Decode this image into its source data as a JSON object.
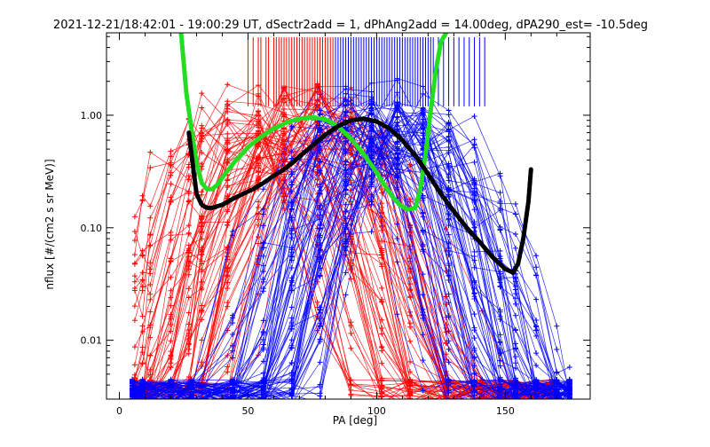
{
  "chart_data": {
    "type": "line",
    "title": "2021-12-21/18:42:01 - 19:00:29 UT, dSectr2add = 1, dPhAng2add = 14.00deg, dPA290_est= -10.5deg",
    "xlabel": "PA [deg]",
    "ylabel": "nflux [#/(cm2 s sr MeV)]",
    "xlim": [
      -5,
      183
    ],
    "ylim": [
      0.003,
      5.4
    ],
    "y_scale": "log",
    "grid": false,
    "legend": "none",
    "x_ticks": [
      0,
      50,
      100,
      150
    ],
    "x_tick_labels": [
      "0",
      "50",
      "100",
      "150"
    ],
    "y_ticks": [
      0.01,
      0.1,
      1.0
    ],
    "y_tick_labels": [
      "0.01",
      "0.10",
      "1.00"
    ],
    "colors": {
      "red": "#ff0000",
      "blue": "#0000ff",
      "green": "#22dd22",
      "black": "#000000",
      "axis": "#000000"
    },
    "series": [
      {
        "color": "#22dd22",
        "style": "thick-dotted",
        "x": [
          24,
          26,
          28,
          30,
          32,
          34,
          36,
          38,
          40,
          42,
          45,
          48,
          50,
          55,
          60,
          65,
          70,
          75,
          80,
          85,
          90,
          95,
          100,
          103,
          106,
          109,
          112,
          115,
          117,
          119,
          121,
          123,
          125,
          127
        ],
        "y": [
          5.3,
          1.6,
          0.75,
          0.38,
          0.25,
          0.22,
          0.22,
          0.24,
          0.28,
          0.32,
          0.39,
          0.46,
          0.52,
          0.64,
          0.76,
          0.86,
          0.93,
          0.96,
          0.92,
          0.8,
          0.62,
          0.45,
          0.31,
          0.24,
          0.19,
          0.16,
          0.145,
          0.15,
          0.22,
          0.45,
          1.1,
          2.5,
          4.5,
          5.4
        ]
      },
      {
        "color": "#000000",
        "style": "thick-dotted",
        "x": [
          27,
          29,
          30,
          32,
          34,
          36,
          38,
          40,
          44,
          48,
          52,
          56,
          60,
          64,
          68,
          72,
          76,
          80,
          85,
          90,
          95,
          100,
          105,
          110,
          115,
          120,
          125,
          130,
          135,
          140,
          145,
          150,
          153,
          155,
          157,
          159,
          160
        ],
        "y": [
          0.7,
          0.3,
          0.2,
          0.16,
          0.15,
          0.15,
          0.155,
          0.16,
          0.18,
          0.2,
          0.22,
          0.25,
          0.29,
          0.33,
          0.39,
          0.47,
          0.56,
          0.67,
          0.8,
          0.9,
          0.93,
          0.88,
          0.76,
          0.6,
          0.44,
          0.3,
          0.2,
          0.14,
          0.1,
          0.075,
          0.055,
          0.043,
          0.04,
          0.048,
          0.08,
          0.17,
          0.33
        ]
      }
    ],
    "red_rugs_x": [
      50,
      52,
      54,
      55,
      57,
      58,
      60,
      61,
      62,
      63,
      64,
      65,
      66,
      67,
      68,
      69,
      70,
      71,
      72,
      73,
      74,
      75,
      76,
      77,
      78,
      79,
      80,
      81,
      82,
      83
    ],
    "blue_rugs_x": [
      84,
      85,
      86,
      87,
      88,
      89,
      90,
      91,
      92,
      93,
      94,
      95,
      96,
      97,
      98,
      99,
      100,
      101,
      102,
      103,
      104,
      105,
      106,
      107,
      108,
      109,
      110,
      111,
      112,
      113,
      114,
      115,
      116,
      117,
      118,
      119,
      120,
      121,
      122,
      124,
      126,
      128,
      130,
      132,
      134,
      136,
      138,
      140,
      142
    ]
  }
}
